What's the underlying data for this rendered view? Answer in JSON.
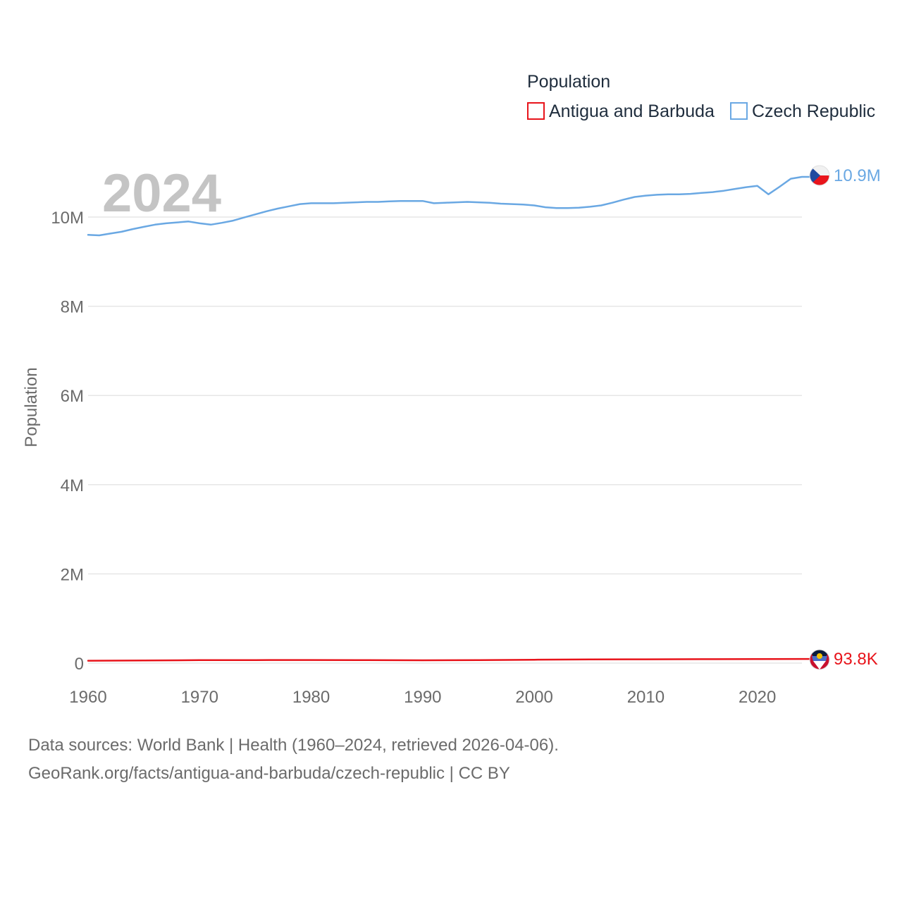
{
  "chart_data": {
    "type": "line",
    "title": "",
    "year_watermark": "2024",
    "xlabel": "",
    "ylabel": "Population",
    "xlim": [
      1960,
      2024
    ],
    "ylim": [
      0,
      10500000
    ],
    "x_ticks": [
      1960,
      1970,
      1980,
      1990,
      2000,
      2010,
      2020
    ],
    "x_tick_labels": [
      "1960",
      "1970",
      "1980",
      "1990",
      "2000",
      "2010",
      "2020"
    ],
    "y_ticks": [
      0,
      2000000,
      4000000,
      6000000,
      8000000,
      10000000
    ],
    "y_tick_labels": [
      "0",
      "2M",
      "4M",
      "6M",
      "8M",
      "10M"
    ],
    "grid": true,
    "legend": {
      "title": "Population",
      "placement": "top-right"
    },
    "series": [
      {
        "name": "Antigua and Barbuda",
        "color": "#e8141b",
        "end_label": "93.8K",
        "flag_icon": "antigua-and-barbuda-flag-icon",
        "x": [
          1960,
          1965,
          1970,
          1975,
          1980,
          1985,
          1990,
          1995,
          2000,
          2005,
          2010,
          2015,
          2020,
          2024
        ],
        "values": [
          54000,
          60000,
          66000,
          68000,
          69000,
          66000,
          63000,
          67000,
          76000,
          82000,
          86000,
          89000,
          92000,
          93800
        ]
      },
      {
        "name": "Czech Republic",
        "color": "#6aa8e3",
        "end_label": "10.9M",
        "flag_icon": "czech-republic-flag-icon",
        "x": [
          1960,
          1961,
          1962,
          1963,
          1964,
          1965,
          1966,
          1967,
          1968,
          1969,
          1970,
          1971,
          1972,
          1973,
          1974,
          1975,
          1976,
          1977,
          1978,
          1979,
          1980,
          1981,
          1982,
          1983,
          1984,
          1985,
          1986,
          1987,
          1988,
          1989,
          1990,
          1991,
          1992,
          1993,
          1994,
          1995,
          1996,
          1997,
          1998,
          1999,
          2000,
          2001,
          2002,
          2003,
          2004,
          2005,
          2006,
          2007,
          2008,
          2009,
          2010,
          2011,
          2012,
          2013,
          2014,
          2015,
          2016,
          2017,
          2018,
          2019,
          2020,
          2021,
          2022,
          2023,
          2024
        ],
        "values": [
          9600000,
          9590000,
          9630000,
          9670000,
          9730000,
          9780000,
          9830000,
          9860000,
          9880000,
          9900000,
          9860000,
          9830000,
          9870000,
          9920000,
          9990000,
          10060000,
          10130000,
          10190000,
          10240000,
          10290000,
          10310000,
          10310000,
          10310000,
          10320000,
          10330000,
          10340000,
          10340000,
          10350000,
          10360000,
          10360000,
          10360000,
          10310000,
          10320000,
          10330000,
          10340000,
          10330000,
          10320000,
          10300000,
          10290000,
          10280000,
          10260000,
          10220000,
          10200000,
          10200000,
          10210000,
          10230000,
          10260000,
          10320000,
          10390000,
          10450000,
          10480000,
          10500000,
          10510000,
          10510000,
          10520000,
          10540000,
          10560000,
          10590000,
          10630000,
          10670000,
          10700000,
          10510000,
          10680000,
          10860000,
          10900000
        ]
      }
    ]
  },
  "footer": {
    "line1": "Data sources: World Bank | Health (1960–2024, retrieved 2026-04-06).",
    "line2": "GeoRank.org/facts/antigua-and-barbuda/czech-republic | CC BY"
  }
}
